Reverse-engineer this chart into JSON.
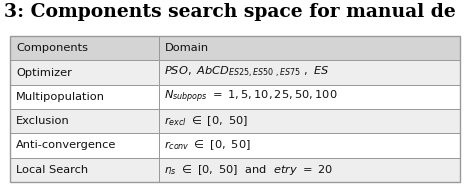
{
  "title": "3: Components search space for manual de",
  "title_fontsize": 13.5,
  "background_color": "#ffffff",
  "header_bg": "#d4d4d4",
  "row_bg_odd": "#eeeeee",
  "row_bg_even": "#ffffff",
  "border_color": "#999999",
  "header_row": [
    "Components",
    "Domain"
  ],
  "rows": [
    [
      "Optimizer",
      ""
    ],
    [
      "Multipopulation",
      ""
    ],
    [
      "Exclusion",
      ""
    ],
    [
      "Anti-convergence",
      ""
    ],
    [
      "Local Search",
      ""
    ]
  ],
  "col_split": 0.33,
  "fig_width": 4.68,
  "fig_height": 1.84,
  "dpi": 100
}
